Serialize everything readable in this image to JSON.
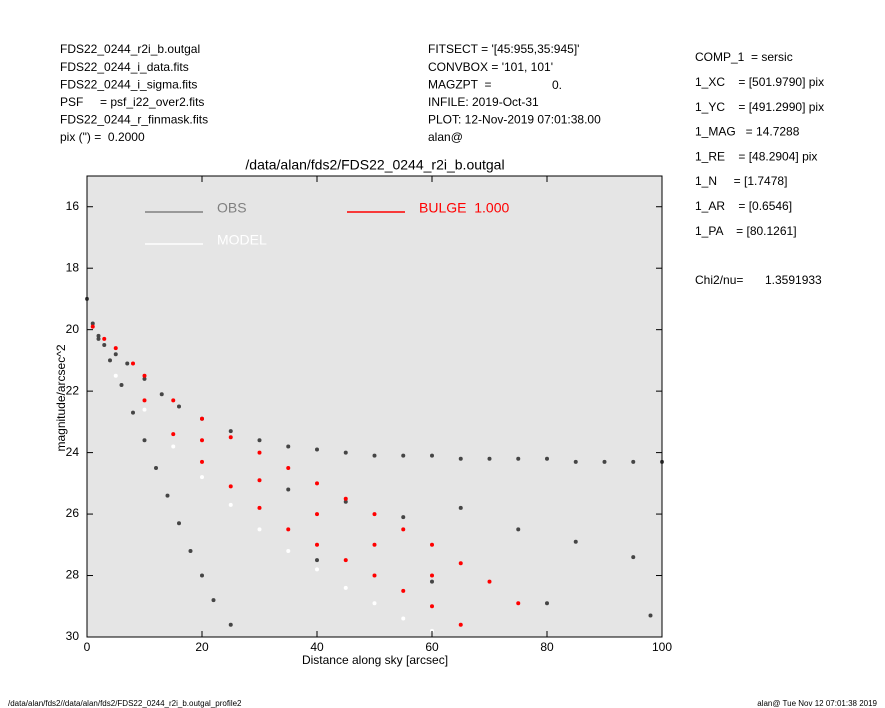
{
  "header": {
    "left": [
      "FDS22_0244_r2i_b.outgal",
      "FDS22_0244_i_data.fits",
      "FDS22_0244_i_sigma.fits",
      "PSF     = psf_i22_over2.fits",
      "FDS22_0244_r_finmask.fits",
      "pix (\") =  0.2000"
    ],
    "middle": [
      "FITSECT = '[45:955,35:945]'",
      "CONVBOX = '101, 101'",
      "MAGZPT  =",
      "INFILE: 2019-Oct-31",
      "PLOT: 12-Nov-2019 07:01:38.00",
      "alan@"
    ],
    "magzpt_value": "0.",
    "right": [
      "COMP_1  = sersic",
      "1_XC    = [501.9790] pix",
      "1_YC    = [491.2990] pix",
      "1_MAG   = 14.7288",
      "1_RE    = [48.2904] pix",
      "1_N     = [1.7478]",
      "1_AR    = [0.6546]",
      "1_PA    = [80.1261]"
    ],
    "chi_label": "Chi2/nu=",
    "chi_value": "1.3591933"
  },
  "chart_data": {
    "type": "scatter",
    "title": "/data/alan/fds2/FDS22_0244_r2i_b.outgal",
    "x_label": "Distance along sky [arcsec]",
    "y_label": "magnitude/arcsec^2",
    "xlim": [
      0,
      100
    ],
    "ylim": [
      15,
      30
    ],
    "y_reversed": true,
    "xticks": [
      0,
      20,
      40,
      60,
      80,
      100
    ],
    "yticks": [
      16,
      18,
      20,
      22,
      24,
      26,
      28,
      30
    ],
    "plot_background": "#e5e5e5",
    "series": [
      {
        "name": "OBS",
        "color": "#454545",
        "legend_color": "#808080",
        "x": [
          0,
          1,
          2,
          3,
          5,
          7,
          10,
          13,
          16,
          20,
          25,
          30,
          35,
          40,
          45,
          50,
          55,
          60,
          65,
          70,
          75,
          80,
          85,
          90,
          95,
          100,
          2,
          4,
          6,
          8,
          10,
          12,
          14,
          16,
          18,
          20,
          22,
          25,
          35,
          45,
          55,
          65,
          75,
          85,
          95,
          40,
          60,
          80,
          98
        ],
        "values": [
          19,
          19.8,
          20.2,
          20.5,
          20.8,
          21.1,
          21.6,
          22.1,
          22.5,
          22.9,
          23.3,
          23.6,
          23.8,
          23.9,
          24.0,
          24.1,
          24.1,
          24.1,
          24.2,
          24.2,
          24.2,
          24.2,
          24.3,
          24.3,
          24.3,
          24.3,
          20.3,
          21,
          21.8,
          22.7,
          23.6,
          24.5,
          25.4,
          26.3,
          27.2,
          28.0,
          28.8,
          29.6,
          25.2,
          25.6,
          26.1,
          25.8,
          26.5,
          26.9,
          27.4,
          27.5,
          28.2,
          28.9,
          29.3
        ]
      },
      {
        "name": "MODEL",
        "color": "#ffffff",
        "legend_color": "#ffffff",
        "x": [
          5,
          10,
          15,
          20,
          25,
          30,
          35,
          40,
          45,
          50,
          55,
          60
        ],
        "values": [
          21.5,
          22.6,
          23.8,
          24.8,
          25.7,
          26.5,
          27.2,
          27.8,
          28.4,
          28.9,
          29.4,
          29.8
        ]
      },
      {
        "name": "BULGE  1.000",
        "color": "#ff0000",
        "legend_color": "#ff0000",
        "x": [
          1,
          3,
          5,
          8,
          10,
          15,
          20,
          25,
          30,
          35,
          40,
          45,
          50,
          55,
          60,
          65,
          70,
          75,
          10,
          15,
          20,
          25,
          30,
          35,
          40,
          45,
          50,
          55,
          60,
          65,
          20,
          30,
          40,
          50,
          60
        ],
        "values": [
          19.9,
          20.3,
          20.6,
          21.1,
          21.5,
          22.3,
          22.9,
          23.5,
          24.0,
          24.5,
          25.0,
          25.5,
          26.0,
          26.5,
          27.0,
          27.6,
          28.2,
          28.9,
          22.3,
          23.4,
          24.3,
          25.1,
          25.8,
          26.5,
          27.0,
          27.5,
          28.0,
          28.5,
          29.0,
          29.6,
          23.6,
          24.9,
          26.0,
          27.0,
          28.0
        ]
      }
    ]
  },
  "footer": {
    "left": "/data/alan/fds2//data/alan/fds2/FDS22_0244_r2i_b.outgal_profile2",
    "right": "alan@  Tue Nov 12 07:01:38 2019"
  }
}
